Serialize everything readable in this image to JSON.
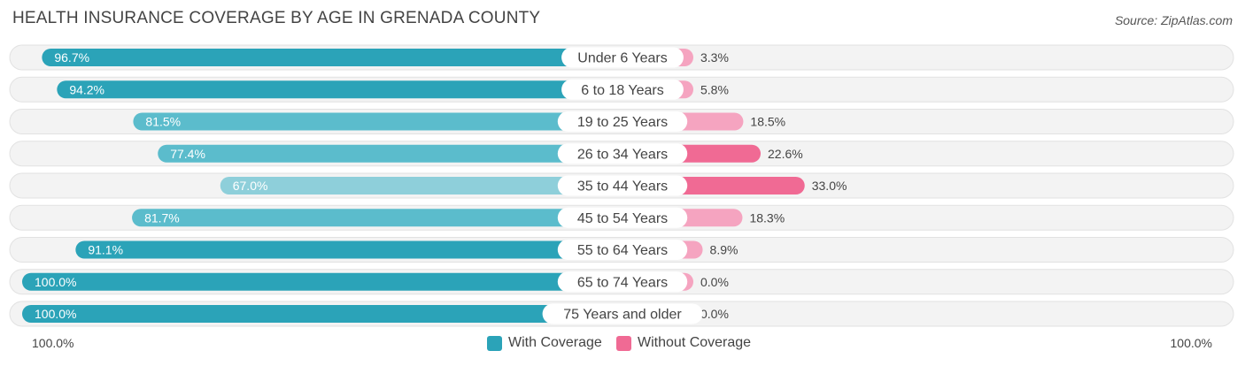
{
  "title": "HEALTH INSURANCE COVERAGE BY AGE IN GRENADA COUNTY",
  "source": "Source: ZipAtlas.com",
  "colors": {
    "with_strong": "#2ba3b8",
    "with_light": "#8ecfda",
    "without_strong": "#f06a94",
    "without_light": "#f5a4c0",
    "track": "#efefef"
  },
  "legend": {
    "with": "With Coverage",
    "without": "Without Coverage"
  },
  "axis": {
    "left": "100.0%",
    "right": "100.0%"
  },
  "chart_data": {
    "type": "bar",
    "orientation": "horizontal-diverging",
    "title": "HEALTH INSURANCE COVERAGE BY AGE IN GRENADA COUNTY",
    "categories": [
      "Under 6 Years",
      "6 to 18 Years",
      "19 to 25 Years",
      "26 to 34 Years",
      "35 to 44 Years",
      "45 to 54 Years",
      "55 to 64 Years",
      "65 to 74 Years",
      "75 Years and older"
    ],
    "series": [
      {
        "name": "With Coverage",
        "values": [
          96.7,
          94.2,
          81.5,
          77.4,
          67.0,
          81.7,
          91.1,
          100.0,
          100.0
        ],
        "labels": [
          "96.7%",
          "94.2%",
          "81.5%",
          "77.4%",
          "67.0%",
          "81.7%",
          "91.1%",
          "100.0%",
          "100.0%"
        ]
      },
      {
        "name": "Without Coverage",
        "values": [
          3.3,
          5.8,
          18.5,
          22.6,
          33.0,
          18.3,
          8.9,
          0.0,
          0.0
        ],
        "labels": [
          "3.3%",
          "5.8%",
          "18.5%",
          "22.6%",
          "33.0%",
          "18.3%",
          "8.9%",
          "0.0%",
          "0.0%"
        ]
      }
    ],
    "xlim": [
      0,
      100
    ],
    "legend_position": "bottom-center"
  }
}
